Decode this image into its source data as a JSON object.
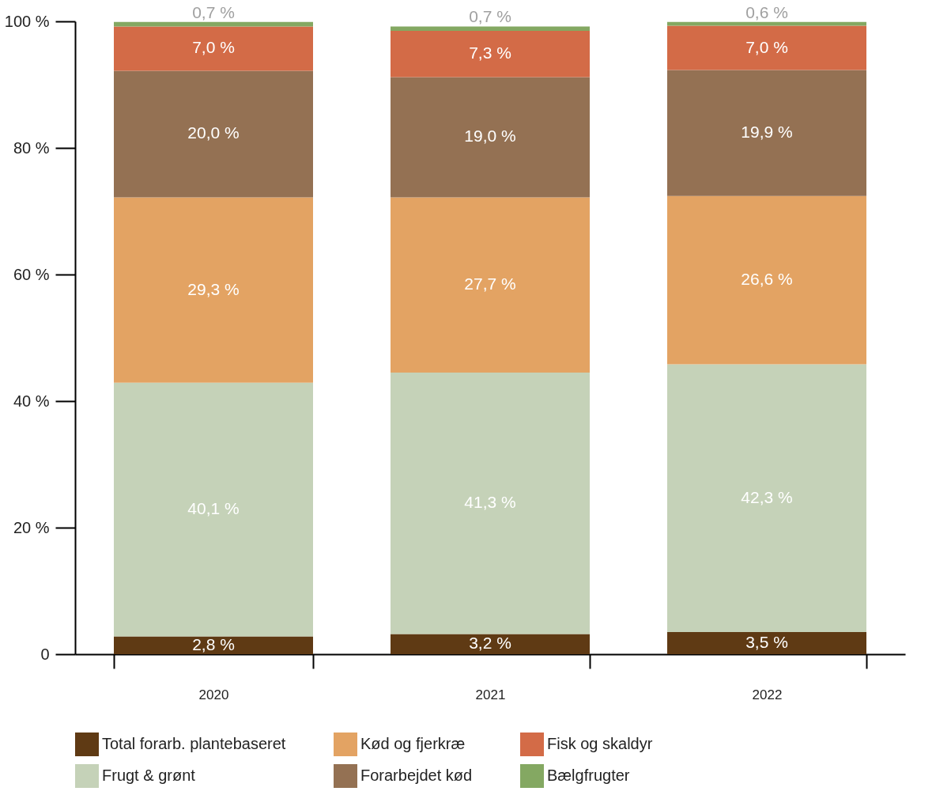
{
  "chart_data": {
    "type": "bar",
    "stacked": true,
    "categories": [
      "2020",
      "2021",
      "2022"
    ],
    "series": [
      {
        "name": "Total forarb. plantebaseret",
        "color": "#5f3a14",
        "values": [
          2.8,
          3.2,
          3.5
        ],
        "value_labels": [
          "2,8 %",
          "3,2 %",
          "3,5 %"
        ]
      },
      {
        "name": "Frugt & grønt",
        "color": "#c5d2b8",
        "values": [
          40.1,
          41.3,
          42.3
        ],
        "value_labels": [
          "40,1 %",
          "41,3 %",
          "42,3 %"
        ]
      },
      {
        "name": "Kød og fjerkræ",
        "color": "#e3a363",
        "values": [
          29.3,
          27.7,
          26.6
        ],
        "value_labels": [
          "29,3 %",
          "27,7 %",
          "26,6 %"
        ]
      },
      {
        "name": "Forarbejdet kød",
        "color": "#947153",
        "values": [
          20.0,
          19.0,
          19.9
        ],
        "value_labels": [
          "20,0 %",
          "19,0 %",
          "19,9 %"
        ]
      },
      {
        "name": "Fisk og skaldyr",
        "color": "#d36b47",
        "values": [
          7.0,
          7.3,
          7.0
        ],
        "value_labels": [
          "7,0 %",
          "7,3 %",
          "7,0 %"
        ]
      },
      {
        "name": "Bælgfrugter",
        "color": "#84a862",
        "values": [
          0.7,
          0.7,
          0.6
        ],
        "value_labels": [
          "0,7 %",
          "0,7 %",
          "0,6 %"
        ]
      }
    ],
    "ylim": [
      0,
      100
    ],
    "yticks": [
      0,
      {
        "value": 20,
        "label": "20 %"
      },
      {
        "value": 40,
        "label": "40 %"
      },
      {
        "value": 60,
        "label": "60 %"
      },
      {
        "value": 80,
        "label": "80 %"
      },
      {
        "value": 100,
        "label": "100 %"
      }
    ],
    "grid": false,
    "legend": "bottom"
  }
}
